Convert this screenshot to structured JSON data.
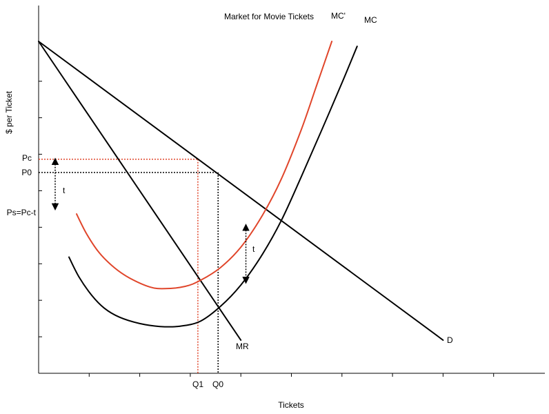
{
  "chart_data": {
    "type": "line",
    "title": "Market for Movie Tickets",
    "xlabel": "Tickets",
    "ylabel": "$ per Ticket",
    "xlim": [
      0,
      100
    ],
    "ylim": [
      0,
      100
    ],
    "grid": false,
    "colors": {
      "axis": "#000000",
      "original_curves": "#000000",
      "taxed_curve": "#e0452a",
      "taxed_guides": "#e0452a"
    },
    "series": [
      {
        "name": "D",
        "color": "#000000",
        "points": [
          [
            0,
            100
          ],
          [
            80,
            10
          ]
        ]
      },
      {
        "name": "MR",
        "color": "#000000",
        "points": [
          [
            0,
            100
          ],
          [
            40,
            10
          ]
        ]
      },
      {
        "name": "MC",
        "color": "#000000",
        "points": [
          [
            6,
            35
          ],
          [
            8,
            29
          ],
          [
            10.5,
            23.5
          ],
          [
            13,
            19.6
          ],
          [
            16,
            16.9
          ],
          [
            20,
            15
          ],
          [
            24,
            14.1
          ],
          [
            28,
            14.2
          ],
          [
            32,
            15.7
          ],
          [
            36,
            20.2
          ],
          [
            40,
            26.6
          ],
          [
            44,
            35.2
          ],
          [
            48,
            46
          ],
          [
            52,
            59.4
          ],
          [
            56,
            73.3
          ],
          [
            60,
            87.5
          ],
          [
            63,
            98.5
          ]
        ]
      },
      {
        "name": "MC'",
        "color": "#e0452a",
        "points": [
          [
            7.5,
            48
          ],
          [
            9.5,
            42
          ],
          [
            12,
            36.3
          ],
          [
            15,
            31.8
          ],
          [
            18,
            28.7
          ],
          [
            22,
            26
          ],
          [
            25,
            25.5
          ],
          [
            29,
            26.2
          ],
          [
            32,
            28
          ],
          [
            36,
            31.9
          ],
          [
            40,
            38
          ],
          [
            44,
            46.9
          ],
          [
            48,
            58.5
          ],
          [
            52,
            73.6
          ],
          [
            55,
            86.8
          ],
          [
            58,
            100
          ]
        ]
      }
    ],
    "equilibria": {
      "Q0": 35.5,
      "Q1": 31.5,
      "P0": 60.5,
      "Pc": 64.5,
      "Ps": 49.5
    },
    "tax_arrow": {
      "x": 41,
      "y_top": 44,
      "y_bottom": 28
    },
    "y_tick_labels": [
      "Pc",
      "P0",
      "Ps=Pc-t"
    ],
    "x_tick_labels": [
      "Q1",
      "Q0"
    ],
    "annotations": [
      "t",
      "t"
    ],
    "x_ticks": [
      10,
      20,
      30,
      40,
      50,
      60,
      70,
      80,
      90
    ],
    "y_ticks": [
      11,
      22,
      33,
      44,
      55,
      66,
      77,
      88
    ]
  }
}
